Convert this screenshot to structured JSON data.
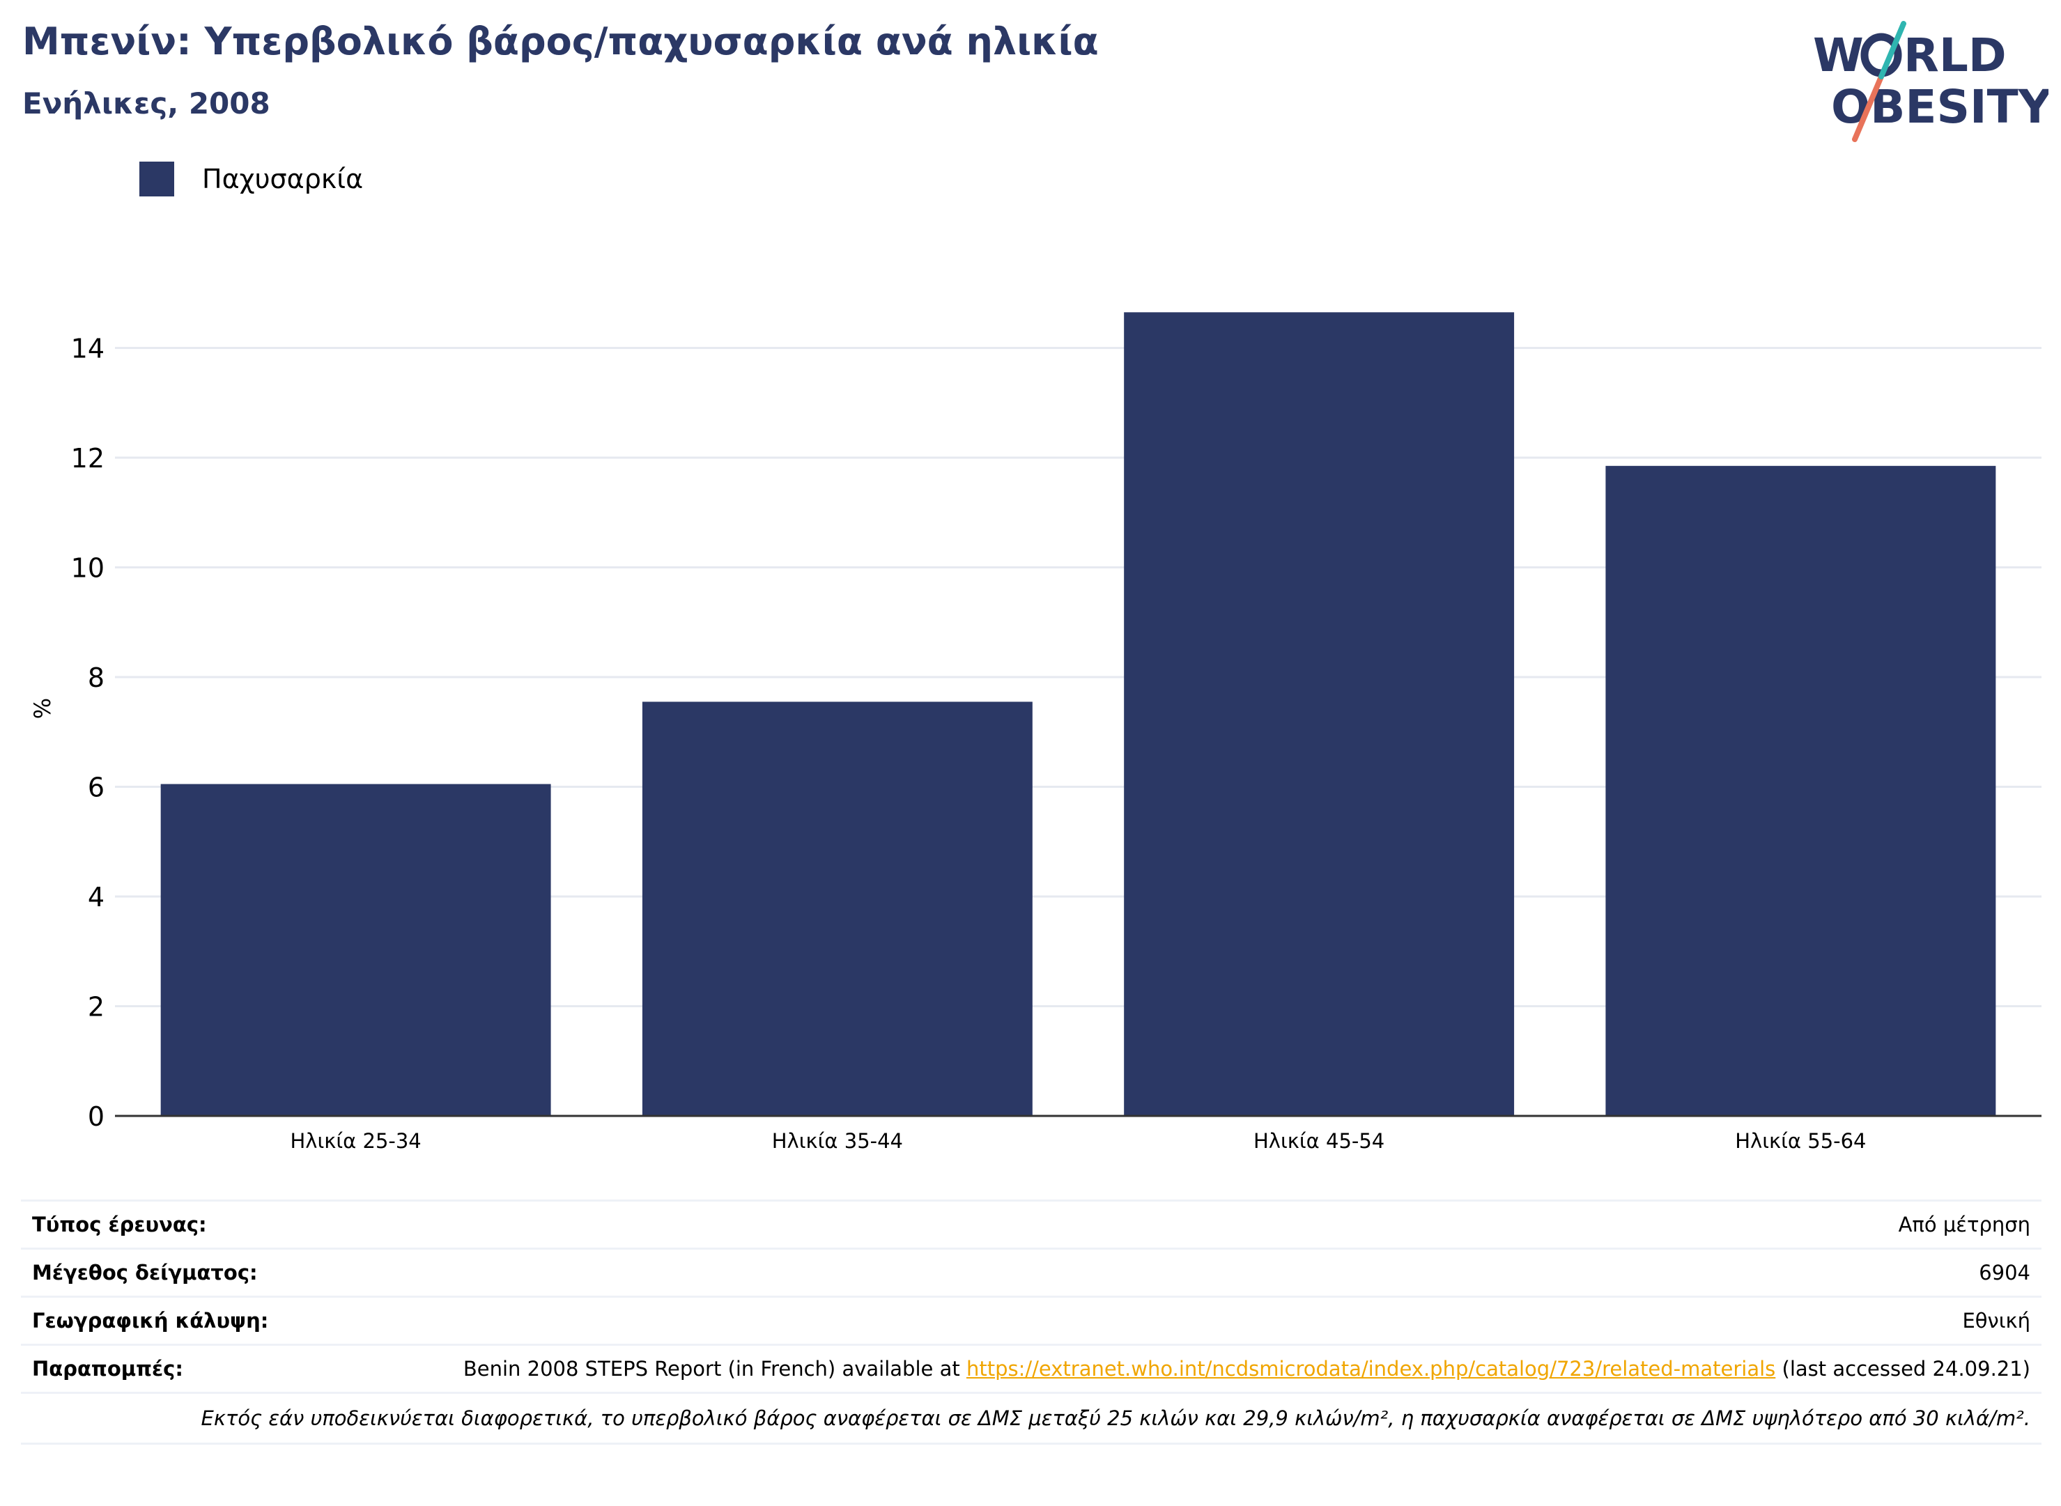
{
  "header": {
    "title": "Μπενίν: Υπερβολικό βάρος/παχυσαρκία ανά ηλικία",
    "subtitle": "Ενήλικες, 2008"
  },
  "logo": {
    "line1": "W RLD",
    "line2": "OBESITY",
    "text": "WORLD OBESITY",
    "colors": {
      "text": "#2b3865",
      "slash_teal": "#2fb5b0",
      "slash_coral": "#e8735a"
    }
  },
  "legend": {
    "label": "Παχυσαρκία",
    "color": "#2b3865"
  },
  "chart_data": {
    "type": "bar",
    "categories": [
      "Ηλικία 25-34",
      "Ηλικία 35-44",
      "Ηλικία 45-54",
      "Ηλικία 55-64"
    ],
    "series": [
      {
        "name": "Παχυσαρκία",
        "values": [
          6.05,
          7.55,
          14.65,
          11.85
        ],
        "color": "#2b3865"
      }
    ],
    "ylabel": "%",
    "ylim": [
      0,
      16
    ],
    "yticks": [
      0,
      2,
      4,
      6,
      8,
      10,
      12,
      14
    ],
    "grid": true,
    "legend_position": "top-left"
  },
  "info": {
    "survey_type_label": "Τύπος έρευνας:",
    "survey_type_value": "Από μέτρηση",
    "sample_size_label": "Μέγεθος δείγματος:",
    "sample_size_value": "6904",
    "coverage_label": "Γεωγραφική κάλυψη:",
    "coverage_value": "Εθνική",
    "references_label": "Παραπομπές:",
    "references_prefix": "Benin 2008 STEPS Report (in French) available at ",
    "references_link": "https://extranet.who.int/ncdsmicrodata/index.php/catalog/723/related-materials",
    "references_suffix": " (last accessed 24.09.21)",
    "footnote": "Εκτός εάν υποδεικνύεται διαφορετικά, το υπερβολικό βάρος αναφέρεται σε ΔΜΣ μεταξύ 25 κιλών και 29,9 κιλών/m², η παχυσαρκία αναφέρεται σε ΔΜΣ υψηλότερο από 30 κιλά/m²."
  }
}
